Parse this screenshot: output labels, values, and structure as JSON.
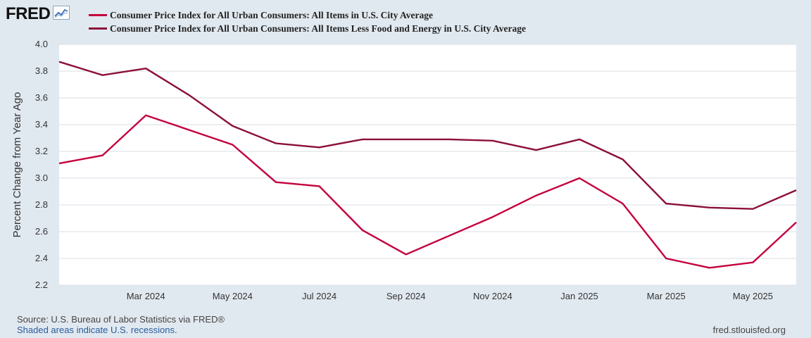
{
  "header": {
    "logo_text": "FRED",
    "logo_icon": "line-chart-icon"
  },
  "colors": {
    "series1": "#c4003c",
    "series2": "#8c0f3a",
    "background": "#e1e9f0",
    "plot_background": "#ffffff",
    "grid": "#d9dee5"
  },
  "chart_data": {
    "type": "line",
    "title": "",
    "xlabel": "",
    "ylabel": "Percent Change from Year Ago",
    "ylim": [
      2.2,
      4.0
    ],
    "yticks": [
      "2.2",
      "2.4",
      "2.6",
      "2.8",
      "3.0",
      "3.2",
      "3.4",
      "3.6",
      "3.8",
      "4.0"
    ],
    "x": [
      "2024-01",
      "2024-02",
      "2024-03",
      "2024-04",
      "2024-05",
      "2024-06",
      "2024-07",
      "2024-08",
      "2024-09",
      "2024-10",
      "2024-11",
      "2024-12",
      "2025-01",
      "2025-02",
      "2025-03",
      "2025-04",
      "2025-05",
      "2025-06"
    ],
    "xtick_labels": [
      {
        "index": 2,
        "label": "Mar 2024"
      },
      {
        "index": 4,
        "label": "May 2024"
      },
      {
        "index": 6,
        "label": "Jul 2024"
      },
      {
        "index": 8,
        "label": "Sep 2024"
      },
      {
        "index": 10,
        "label": "Nov 2024"
      },
      {
        "index": 12,
        "label": "Jan 2025"
      },
      {
        "index": 14,
        "label": "Mar 2025"
      },
      {
        "index": 16,
        "label": "May 2025"
      }
    ],
    "series": [
      {
        "name": "Consumer Price Index for All Urban Consumers: All Items in U.S. City Average",
        "values": [
          3.11,
          3.17,
          3.47,
          3.36,
          3.25,
          2.97,
          2.94,
          2.61,
          2.43,
          2.57,
          2.71,
          2.87,
          3.0,
          2.81,
          2.4,
          2.33,
          2.37,
          2.67
        ]
      },
      {
        "name": "Consumer Price Index for All Urban Consumers: All Items Less Food and Energy in U.S. City Average",
        "values": [
          3.87,
          3.77,
          3.82,
          3.62,
          3.39,
          3.26,
          3.23,
          3.29,
          3.29,
          3.29,
          3.28,
          3.21,
          3.29,
          3.14,
          2.81,
          2.78,
          2.77,
          2.91
        ]
      }
    ]
  },
  "footer": {
    "source": "Source: U.S. Bureau of Labor Statistics via FRED®",
    "recession_note": "Shaded areas indicate U.S. recessions.",
    "url": "fred.stlouisfed.org"
  }
}
